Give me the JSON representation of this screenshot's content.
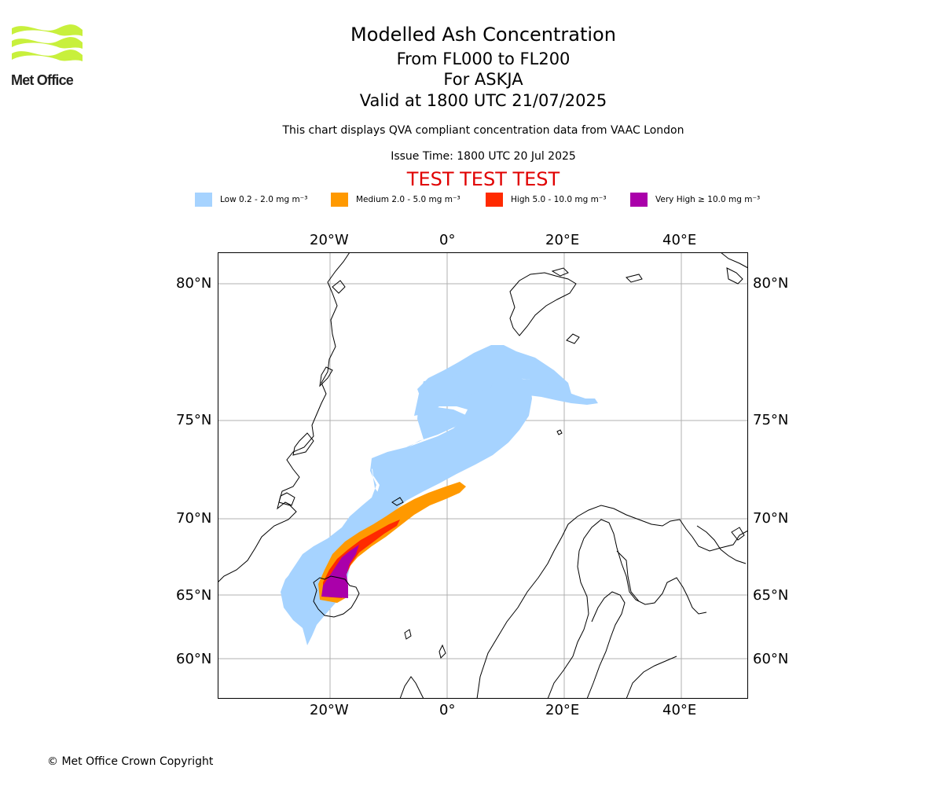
{
  "header": {
    "title": "Modelled Ash Concentration",
    "levels": "From FL000 to FL200",
    "volcano": "For ASKJA",
    "valid": "Valid at 1800 UTC 21/07/2025",
    "description": "This chart displays QVA compliant concentration data from VAAC London",
    "issue_time": "Issue Time: 1800 UTC 20 Jul 2025",
    "test_banner": "TEST TEST TEST"
  },
  "logo": {
    "text": "Met Office",
    "icon": "met-office-waves-icon"
  },
  "legend": [
    {
      "label": "Low 0.2 - 2.0 mg m⁻³",
      "color": "#a6d3ff"
    },
    {
      "label": "Medium 2.0 - 5.0 mg m⁻³",
      "color": "#ff9900"
    },
    {
      "label": "High 5.0 - 10.0 mg m⁻³",
      "color": "#ff2a00"
    },
    {
      "label": "Very High  ≥  10.0 mg m⁻³",
      "color": "#aa00aa"
    }
  ],
  "map": {
    "lon_labels": [
      "20°W",
      "0°",
      "20°E",
      "40°E"
    ],
    "lat_labels": [
      "80°N",
      "75°N",
      "70°N",
      "65°N",
      "60°N"
    ]
  },
  "footer": {
    "copyright": "© Met Office Crown Copyright"
  }
}
